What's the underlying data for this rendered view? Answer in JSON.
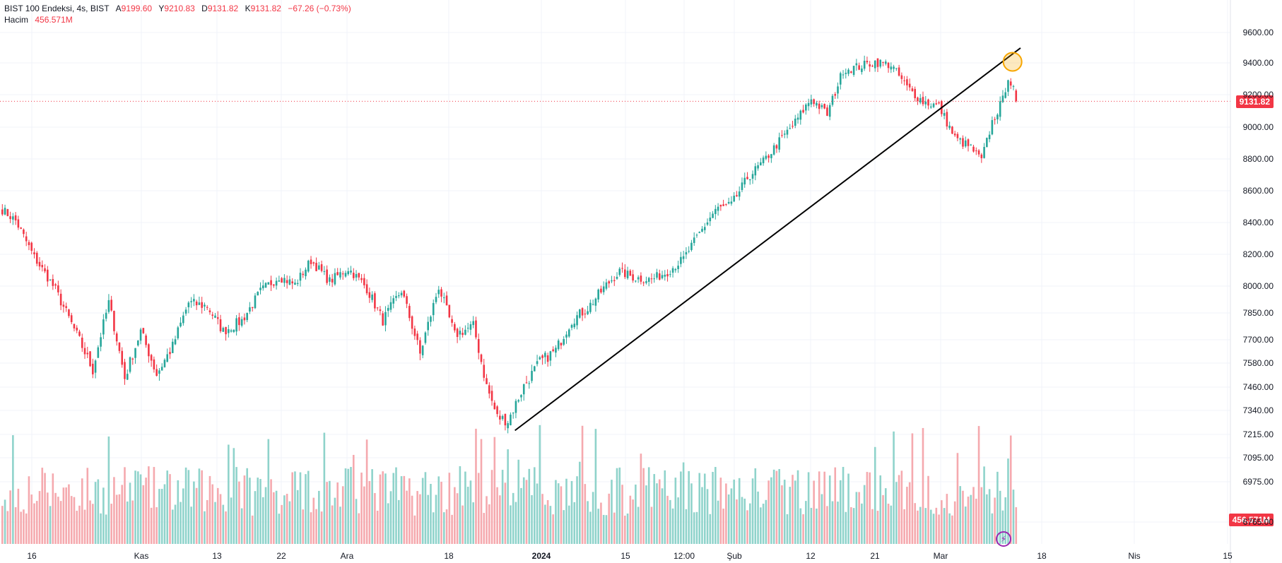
{
  "legend": {
    "symbol": "BIST 100 Endeksi, 4s, BIST",
    "open_label": "A",
    "open": "9199.60",
    "high_label": "Y",
    "high": "9210.83",
    "low_label": "D",
    "low": "9131.82",
    "close_label": "K",
    "close": "9131.82",
    "change": "−67.26 (−0.73%)",
    "volume_label": "Hacim",
    "volume": "456.571M"
  },
  "price_tag": "9131.82",
  "volume_tag": "456.571M",
  "colors": {
    "up": "#26a69a",
    "down": "#f23645",
    "up_vol": "#8fd3cb",
    "down_vol": "#f5a9ae",
    "orange": "#f7a600"
  },
  "chart_data": {
    "type": "candlestick",
    "title": "BIST 100 Endeksi, 4s, BIST",
    "y_ticks": [
      "9600.00",
      "9400.00",
      "9200.00",
      "9000.00",
      "8800.00",
      "8600.00",
      "8400.00",
      "8200.00",
      "8000.00",
      "7850.00",
      "7700.00",
      "7580.00",
      "7460.00",
      "7340.00",
      "7215.00",
      "7095.00",
      "6975.00",
      "6765.00"
    ],
    "x_ticks": [
      {
        "label": "16",
        "bold": false
      },
      {
        "label": "Kas",
        "bold": false
      },
      {
        "label": "13",
        "bold": false
      },
      {
        "label": "22",
        "bold": false
      },
      {
        "label": "Ara",
        "bold": false
      },
      {
        "label": "18",
        "bold": false
      },
      {
        "label": "2024",
        "bold": true
      },
      {
        "label": "15",
        "bold": false
      },
      {
        "label": "12:00",
        "bold": false
      },
      {
        "label": "Şub",
        "bold": false
      },
      {
        "label": "12",
        "bold": false
      },
      {
        "label": "21",
        "bold": false
      },
      {
        "label": "Mar",
        "bold": false
      },
      {
        "label": "18",
        "bold": false
      },
      {
        "label": "Nis",
        "bold": false
      },
      {
        "label": "15",
        "bold": false
      }
    ],
    "anchors": [
      [
        0,
        8450
      ],
      [
        5,
        8380
      ],
      [
        12,
        8150
      ],
      [
        20,
        7950
      ],
      [
        28,
        7700
      ],
      [
        34,
        7520
      ],
      [
        40,
        7880
      ],
      [
        46,
        7480
      ],
      [
        52,
        7720
      ],
      [
        58,
        7500
      ],
      [
        64,
        7640
      ],
      [
        70,
        7880
      ],
      [
        77,
        7860
      ],
      [
        83,
        7720
      ],
      [
        90,
        7780
      ],
      [
        97,
        7940
      ],
      [
        104,
        8030
      ],
      [
        110,
        7980
      ],
      [
        116,
        8130
      ],
      [
        123,
        8000
      ],
      [
        130,
        8080
      ],
      [
        137,
        7960
      ],
      [
        143,
        7780
      ],
      [
        150,
        7950
      ],
      [
        157,
        7600
      ],
      [
        164,
        7970
      ],
      [
        170,
        7700
      ],
      [
        177,
        7750
      ],
      [
        182,
        7440
      ],
      [
        186,
        7280
      ],
      [
        190,
        7260
      ],
      [
        196,
        7440
      ],
      [
        202,
        7560
      ],
      [
        208,
        7620
      ],
      [
        214,
        7780
      ],
      [
        220,
        7850
      ],
      [
        226,
        7960
      ],
      [
        232,
        8060
      ],
      [
        238,
        8020
      ],
      [
        244,
        8010
      ],
      [
        250,
        8060
      ],
      [
        256,
        8140
      ],
      [
        262,
        8300
      ],
      [
        268,
        8450
      ],
      [
        274,
        8480
      ],
      [
        280,
        8650
      ],
      [
        286,
        8750
      ],
      [
        292,
        8880
      ],
      [
        298,
        9000
      ],
      [
        304,
        9150
      ],
      [
        310,
        9050
      ],
      [
        316,
        9330
      ],
      [
        322,
        9350
      ],
      [
        328,
        9380
      ],
      [
        334,
        9360
      ],
      [
        340,
        9220
      ],
      [
        346,
        9130
      ],
      [
        352,
        9100
      ],
      [
        358,
        8900
      ],
      [
        364,
        8840
      ],
      [
        368,
        8760
      ],
      [
        372,
        9000
      ],
      [
        376,
        9140
      ],
      [
        378,
        9290
      ],
      [
        380,
        9200
      ],
      [
        381,
        9131.82
      ]
    ],
    "trendline": {
      "from": {
        "bar": 193,
        "price": 7210
      },
      "to": {
        "bar": 383,
        "price": 9470
      }
    },
    "highlight": {
      "bar": 380,
      "price": 9380
    }
  }
}
